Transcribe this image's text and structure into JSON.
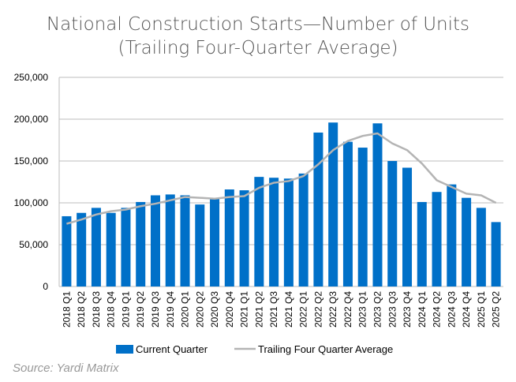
{
  "chart_data": {
    "type": "bar",
    "title": "National Construction Starts—Number of Units",
    "subtitle": "(Trailing Four-Quarter Average)",
    "categories": [
      "2018 Q1",
      "2018 Q2",
      "2018 Q3",
      "2018 Q4",
      "2019 Q1",
      "2019 Q2",
      "2019 Q3",
      "2019 Q4",
      "2020 Q1",
      "2020 Q2",
      "2020 Q3",
      "2020 Q4",
      "2021 Q1",
      "2021 Q2",
      "2021 Q3",
      "2021 Q4",
      "2022 Q1",
      "2022 Q2",
      "2022 Q3",
      "2022 Q4",
      "2023 Q1",
      "2023 Q2",
      "2023 Q3",
      "2023 Q4",
      "2024 Q1",
      "2024 Q2",
      "2024 Q3",
      "2024 Q4",
      "2025 Q1",
      "2025 Q2"
    ],
    "series": [
      {
        "name": "Current Quarter",
        "type": "bar",
        "color": "#0070C8",
        "values": [
          84000,
          88000,
          94000,
          88000,
          94000,
          101000,
          109000,
          110000,
          109000,
          98000,
          105000,
          116000,
          115000,
          131000,
          130000,
          129000,
          135000,
          184000,
          196000,
          173000,
          166000,
          195000,
          150000,
          142000,
          101000,
          113000,
          122000,
          106000,
          94000,
          77000
        ]
      },
      {
        "name": "Trailing Four Quarter Average",
        "type": "line",
        "color": "#B4B4B4",
        "values": [
          75000,
          80000,
          86000,
          90000,
          92000,
          96000,
          99000,
          103000,
          107000,
          106000,
          105000,
          107000,
          108000,
          118000,
          124000,
          126000,
          132000,
          146000,
          163000,
          174000,
          180000,
          183000,
          171000,
          163000,
          147000,
          127000,
          119000,
          111000,
          109000,
          100000
        ]
      }
    ],
    "yticks": [
      "0",
      "50,000",
      "100,000",
      "150,000",
      "200,000",
      "250,000"
    ],
    "ylim": [
      0,
      250000
    ],
    "grid": true,
    "legend": "bottom"
  },
  "source": "Source: Yardi Matrix"
}
